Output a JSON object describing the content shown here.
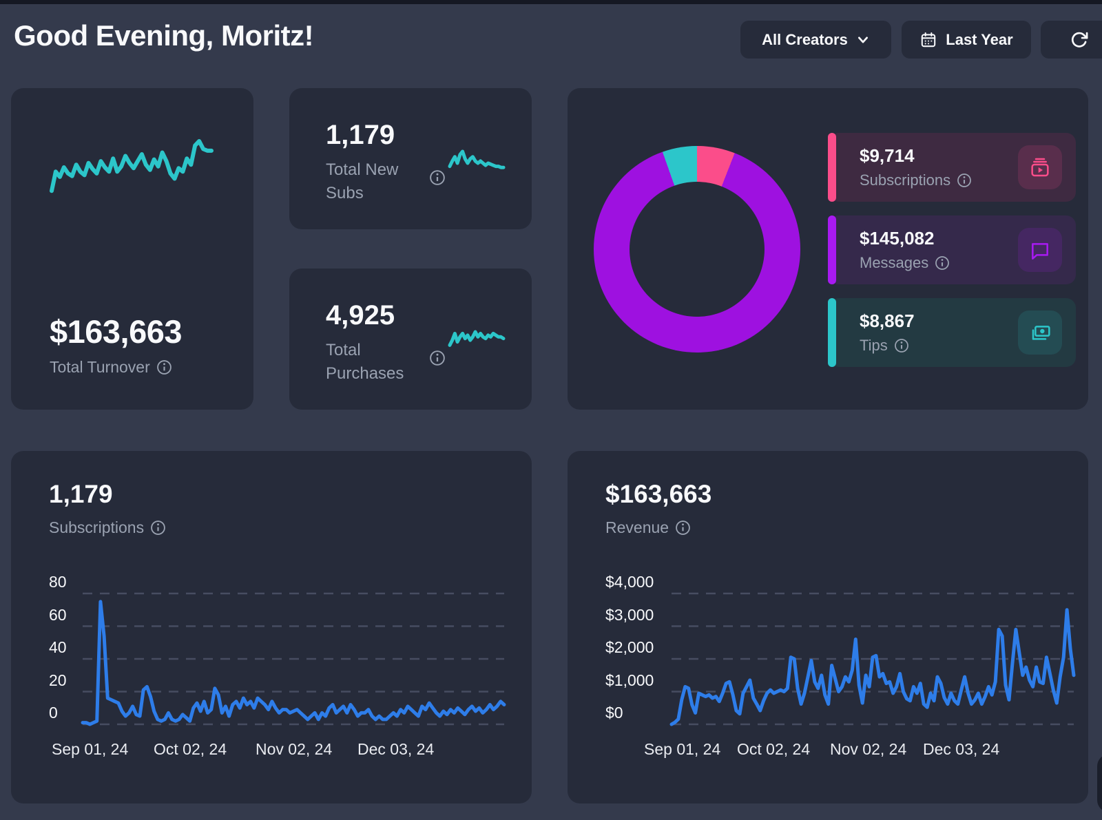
{
  "header": {
    "title": "Good Evening, Moritz!",
    "creators_button": "All Creators",
    "period_button": "Last Year"
  },
  "stats": {
    "turnover": {
      "value": "$163,663",
      "label": "Total Turnover"
    },
    "new_subs": {
      "value": "1,179",
      "label": "Total New Subs"
    },
    "purchases": {
      "value": "4,925",
      "label": "Total Purchases"
    }
  },
  "breakdown": {
    "subscriptions": {
      "value": "$9,714",
      "label": "Subscriptions"
    },
    "messages": {
      "value": "$145,082",
      "label": "Messages"
    },
    "tips": {
      "value": "$8,867",
      "label": "Tips"
    }
  },
  "subscriptions_chart": {
    "value": "1,179",
    "label": "Subscriptions"
  },
  "revenue_chart": {
    "value": "$163,663",
    "label": "Revenue"
  },
  "colors": {
    "blue": "#2e7de9",
    "teal": "#2cc6ca",
    "pink": "#fb4d8a",
    "purple": "#9e11e0"
  },
  "chart_data": [
    {
      "id": "revenue-donut",
      "type": "pie",
      "labels": [
        "Subscriptions",
        "Messages",
        "Tips"
      ],
      "values": [
        9714,
        145082,
        8867
      ],
      "colors": [
        "#fb4d8a",
        "#9e11e0",
        "#2cc6ca"
      ],
      "total": 163663,
      "legend_position": "right",
      "start_angle_deg": 0
    },
    {
      "id": "turnover-spark",
      "type": "line",
      "color": "#2cc6ca",
      "stroke_width": 6,
      "values": [
        18,
        40,
        34,
        45,
        38,
        35,
        48,
        40,
        36,
        50,
        43,
        38,
        52,
        45,
        40,
        55,
        40,
        46,
        58,
        50,
        44,
        52,
        60,
        48,
        42,
        54,
        46,
        62,
        52,
        38,
        32,
        44,
        40,
        55,
        48,
        70,
        75,
        66,
        64,
        64
      ]
    },
    {
      "id": "new-subs-spark",
      "type": "line",
      "color": "#2cc6ca",
      "stroke_width": 5,
      "values": [
        8,
        13,
        17,
        11,
        19,
        22,
        15,
        11,
        15,
        17,
        13,
        11,
        13,
        11,
        9,
        11,
        10,
        9,
        8,
        8,
        7,
        7
      ]
    },
    {
      "id": "purchases-spark",
      "type": "line",
      "color": "#2cc6ca",
      "stroke_width": 5,
      "values": [
        6,
        9,
        13,
        8,
        11,
        13,
        10,
        12,
        9,
        11,
        14,
        11,
        13,
        11,
        10,
        12,
        11,
        13,
        12,
        11,
        11,
        10
      ]
    },
    {
      "id": "subscriptions-line",
      "type": "line",
      "title": "Subscriptions",
      "color": "#2e7de9",
      "stroke_width": 5,
      "grid": true,
      "ylim": [
        0,
        80
      ],
      "y_ticks": [
        "80",
        "60",
        "40",
        "20",
        "0"
      ],
      "x_ticks": [
        "Sep 01, 24",
        "Oct 02, 24",
        "Nov 02, 24",
        "Dec 03, 24"
      ],
      "values": [
        1,
        1,
        0,
        1,
        2,
        75,
        54,
        16,
        15,
        14,
        13,
        8,
        5,
        7,
        11,
        6,
        5,
        21,
        23,
        17,
        8,
        3,
        2,
        3,
        7,
        3,
        2,
        3,
        6,
        4,
        2,
        10,
        13,
        8,
        14,
        7,
        9,
        22,
        18,
        7,
        11,
        5,
        12,
        14,
        10,
        16,
        12,
        14,
        10,
        16,
        14,
        12,
        9,
        14,
        10,
        7,
        9,
        9,
        7,
        8,
        9,
        7,
        5,
        3,
        5,
        7,
        3,
        7,
        5,
        10,
        12,
        7,
        9,
        11,
        7,
        12,
        9,
        5,
        7,
        7,
        9,
        5,
        3,
        5,
        3,
        3,
        5,
        7,
        5,
        9,
        7,
        11,
        9,
        7,
        5,
        11,
        9,
        13,
        10,
        7,
        5,
        8,
        6,
        9,
        7,
        10,
        8,
        6,
        9,
        11,
        8,
        10,
        7,
        9,
        12,
        9,
        11,
        14,
        12
      ]
    },
    {
      "id": "revenue-line",
      "type": "line",
      "title": "Revenue",
      "color": "#2e7de9",
      "stroke_width": 5,
      "grid": true,
      "ylim": [
        0,
        4000
      ],
      "y_ticks": [
        "$4,000",
        "$3,000",
        "$2,000",
        "$1,000",
        "$0"
      ],
      "x_ticks": [
        "Sep 01, 24",
        "Oct 02, 24",
        "Nov 02, 24",
        "Dec 03, 24"
      ],
      "values": [
        0,
        60,
        160,
        750,
        1150,
        1100,
        600,
        350,
        950,
        900,
        850,
        900,
        800,
        850,
        700,
        950,
        1250,
        1300,
        900,
        420,
        320,
        950,
        1150,
        1350,
        800,
        620,
        420,
        720,
        950,
        1050,
        950,
        1000,
        1050,
        1000,
        1100,
        2050,
        2000,
        1100,
        620,
        950,
        1450,
        1950,
        1300,
        1100,
        1500,
        900,
        620,
        1800,
        1400,
        1000,
        1150,
        1450,
        1300,
        1650,
        2600,
        1200,
        650,
        1500,
        1150,
        2050,
        2100,
        1450,
        1550,
        1250,
        1300,
        950,
        1150,
        1550,
        1000,
        780,
        720,
        1150,
        950,
        1250,
        620,
        520,
        950,
        720,
        1450,
        1250,
        820,
        620,
        950,
        720,
        620,
        1050,
        1450,
        950,
        620,
        750,
        950,
        620,
        850,
        1150,
        900,
        1300,
        2900,
        2700,
        1200,
        750,
        1850,
        2900,
        2200,
        1500,
        1750,
        1350,
        1150,
        1750,
        1300,
        1250,
        2050,
        1550,
        1050,
        650,
        1450,
        2050,
        3500,
        2300,
        1500
      ]
    }
  ]
}
